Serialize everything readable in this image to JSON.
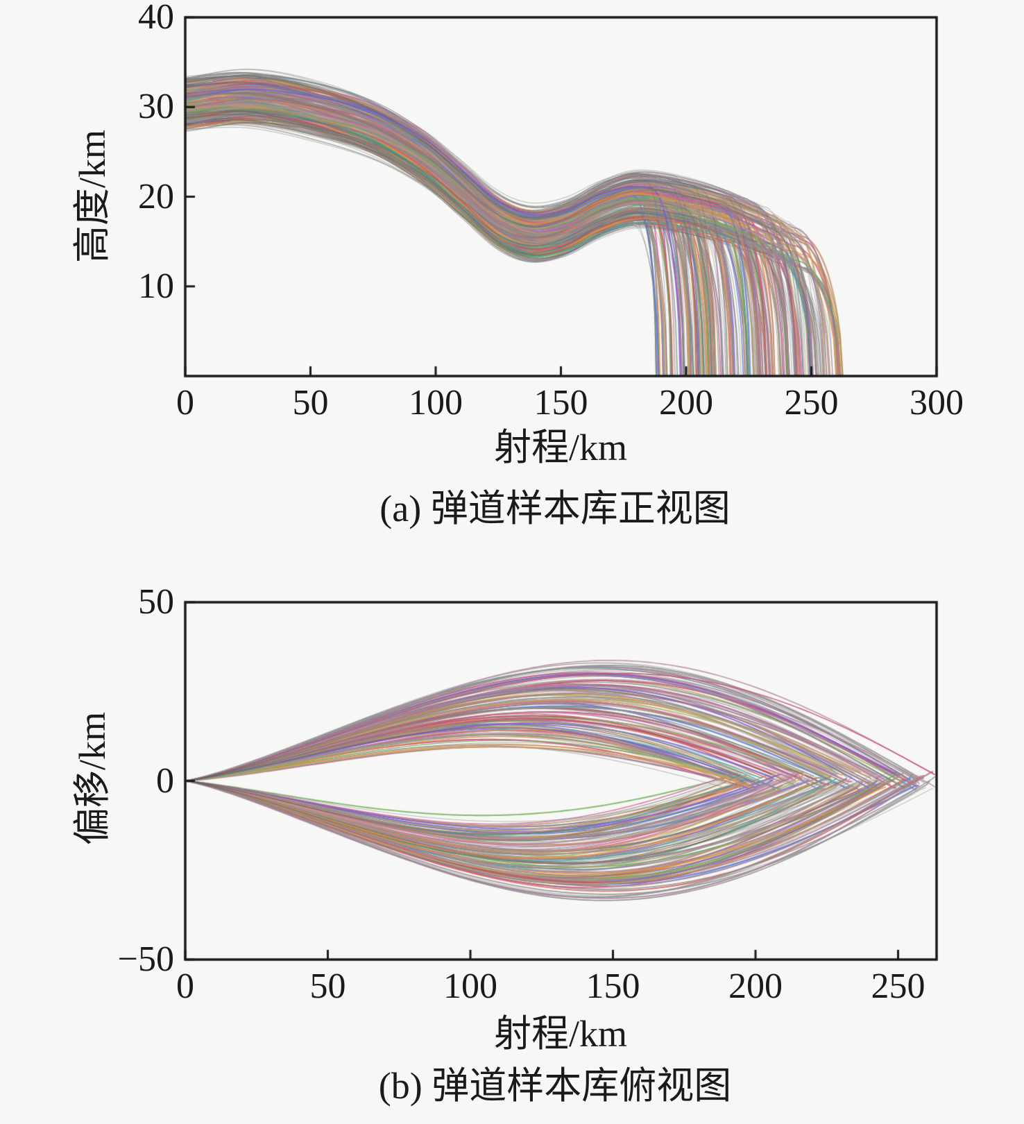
{
  "figure": {
    "background": "#f7f7f5",
    "axis_color": "#1a1a1a",
    "text_color": "#1a1a1a",
    "strand_colors": [
      "#8f8f8f",
      "#8f8f8f",
      "#8f8f8f",
      "#9a9a9a",
      "#a5849b",
      "#a5849b",
      "#b38ba1",
      "#9d7589",
      "#c89e6e",
      "#c89e6e",
      "#bf9468",
      "#8a7a70",
      "#7d8a94",
      "#5b7fd9",
      "#d95b5b",
      "#6faf5b",
      "#7f5fd9",
      "#3fae9a",
      "#e5913d",
      "#d46a9a",
      "#a8b060",
      "#d44a7a"
    ],
    "hairline_color": "#5f5f5f"
  },
  "chart_data": [
    {
      "type": "line",
      "title": "",
      "caption": "(a) 弹道样本库正视图",
      "xlabel": "射程/km",
      "ylabel": "高度/km",
      "xlim": [
        0,
        300
      ],
      "ylim": [
        0,
        40
      ],
      "xticks": [
        0,
        50,
        100,
        150,
        200,
        250,
        300
      ],
      "yticks": [
        10,
        20,
        30,
        40
      ],
      "grid": false,
      "legend": null,
      "n_trajectories": 250,
      "launch_altitude_band_km": [
        28,
        32.5
      ],
      "mean_glide_path": [
        [
          0,
          30.2
        ],
        [
          25,
          30.9
        ],
        [
          50,
          29.8
        ],
        [
          75,
          27.6
        ],
        [
          95,
          24.4
        ],
        [
          110,
          20.9
        ],
        [
          125,
          17.3
        ],
        [
          138,
          15.9
        ],
        [
          152,
          16.6
        ],
        [
          166,
          18.6
        ],
        [
          180,
          19.7
        ],
        [
          200,
          18.9
        ],
        [
          220,
          17.2
        ],
        [
          240,
          14.6
        ],
        [
          263,
          10.5
        ]
      ],
      "bundle_halfwidth_km": 2.2,
      "impact_range_km": [
        188,
        263
      ],
      "dive_length_km": [
        6,
        22
      ]
    },
    {
      "type": "line",
      "title": "",
      "caption": "(b) 弹道样本库俯视图",
      "xlabel": "射程/km",
      "ylabel": "偏移/km",
      "xlim": [
        0,
        263.5
      ],
      "ylim": [
        -50,
        50
      ],
      "xticks": [
        0,
        50,
        100,
        150,
        200,
        250
      ],
      "yticks": [
        -50,
        0,
        50
      ],
      "grid": false,
      "legend": null,
      "n_trajectories": 250,
      "max_offset_km": 35,
      "amplitude_band_km": [
        8,
        35
      ],
      "impact_range_km": [
        188,
        263
      ],
      "peak_range_fraction": 0.57,
      "terminal_offset_km": [
        -2.5,
        2.5
      ]
    }
  ]
}
